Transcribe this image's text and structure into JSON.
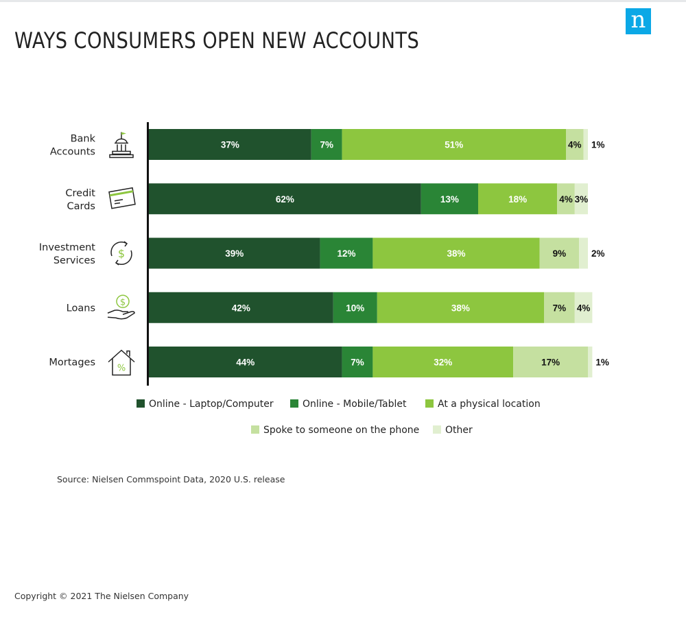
{
  "header": {
    "title": "WAYS CONSUMERS OPEN NEW ACCOUNTS",
    "logo_text": "n",
    "logo_color": "#0ba8e6"
  },
  "chart_data": {
    "type": "bar",
    "orientation": "horizontal",
    "stacked": true,
    "title": "WAYS CONSUMERS OPEN NEW ACCOUNTS",
    "categories": [
      "Bank Accounts",
      "Credit Cards",
      "Investment Services",
      "Loans",
      "Mortages"
    ],
    "category_icons": [
      "bank-building-icon",
      "credit-card-icon",
      "money-cycle-icon",
      "hand-money-icon",
      "house-percent-icon"
    ],
    "series": [
      {
        "name": "Online - Laptop/Computer",
        "color": "#20522d",
        "values": [
          37,
          62,
          39,
          42,
          44
        ]
      },
      {
        "name": "Online - Mobile/Tablet",
        "color": "#2a8536",
        "values": [
          7,
          13,
          12,
          10,
          7
        ]
      },
      {
        "name": "At a physical location",
        "color": "#8dc63f",
        "values": [
          51,
          18,
          38,
          38,
          32
        ]
      },
      {
        "name": "Spoke to someone on the phone",
        "color": "#c5e0a0",
        "values": [
          4,
          4,
          9,
          7,
          17
        ]
      },
      {
        "name": "Other",
        "color": "#e1efd0",
        "values": [
          1,
          3,
          2,
          4,
          1
        ]
      }
    ],
    "xlim": [
      0,
      100
    ],
    "legend_position": "bottom",
    "grid": false
  },
  "footer": {
    "source": "Source: Nielsen Commspoint Data, 2020 U.S. release",
    "copyright": "Copyright © 2021 The Nielsen Company"
  }
}
